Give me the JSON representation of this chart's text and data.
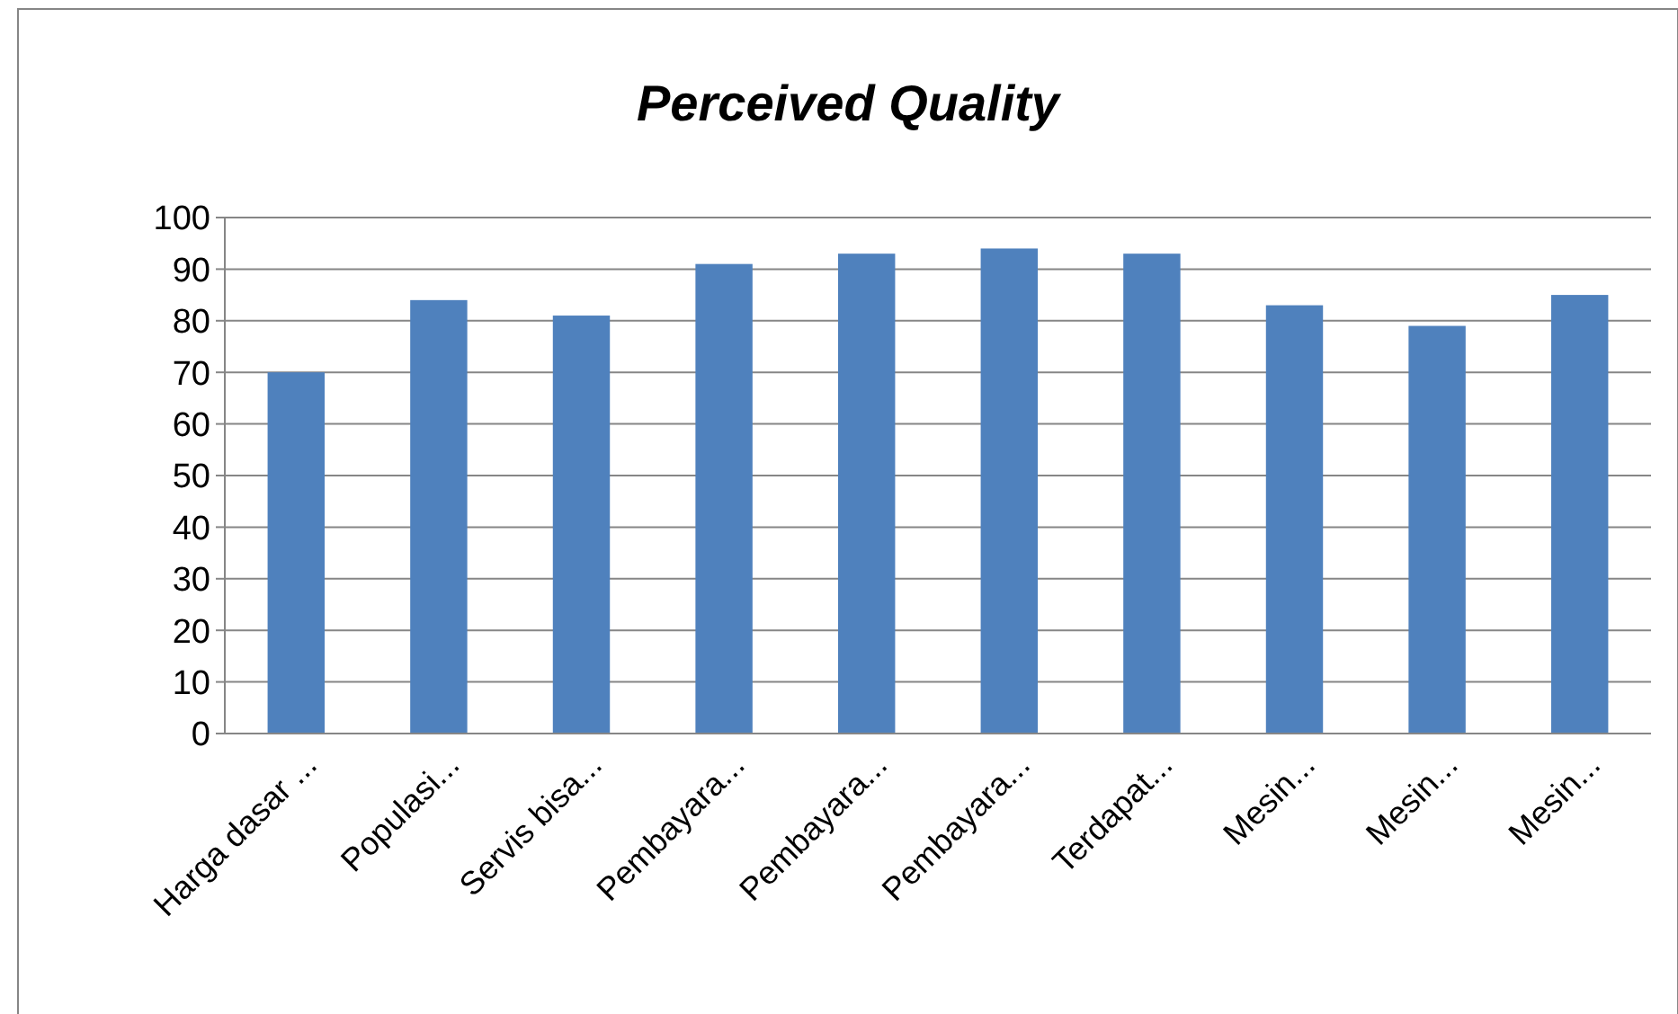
{
  "chart_data": {
    "type": "bar",
    "title": "Perceived Quality",
    "categories": [
      "Harga dasar ...",
      "Populasi...",
      "Servis bisa...",
      "Pembayara...",
      "Pembayara...",
      "Pembayara...",
      "Terdapat...",
      "Mesin...",
      "Mesin...",
      "Mesin..."
    ],
    "values": [
      70,
      84,
      81,
      91,
      93,
      94,
      93,
      83,
      79,
      85
    ],
    "color": "#4f81bd",
    "ylim": [
      0,
      100
    ],
    "yticks": [
      0,
      10,
      20,
      30,
      40,
      50,
      60,
      70,
      80,
      90,
      100
    ],
    "grid": "y"
  }
}
